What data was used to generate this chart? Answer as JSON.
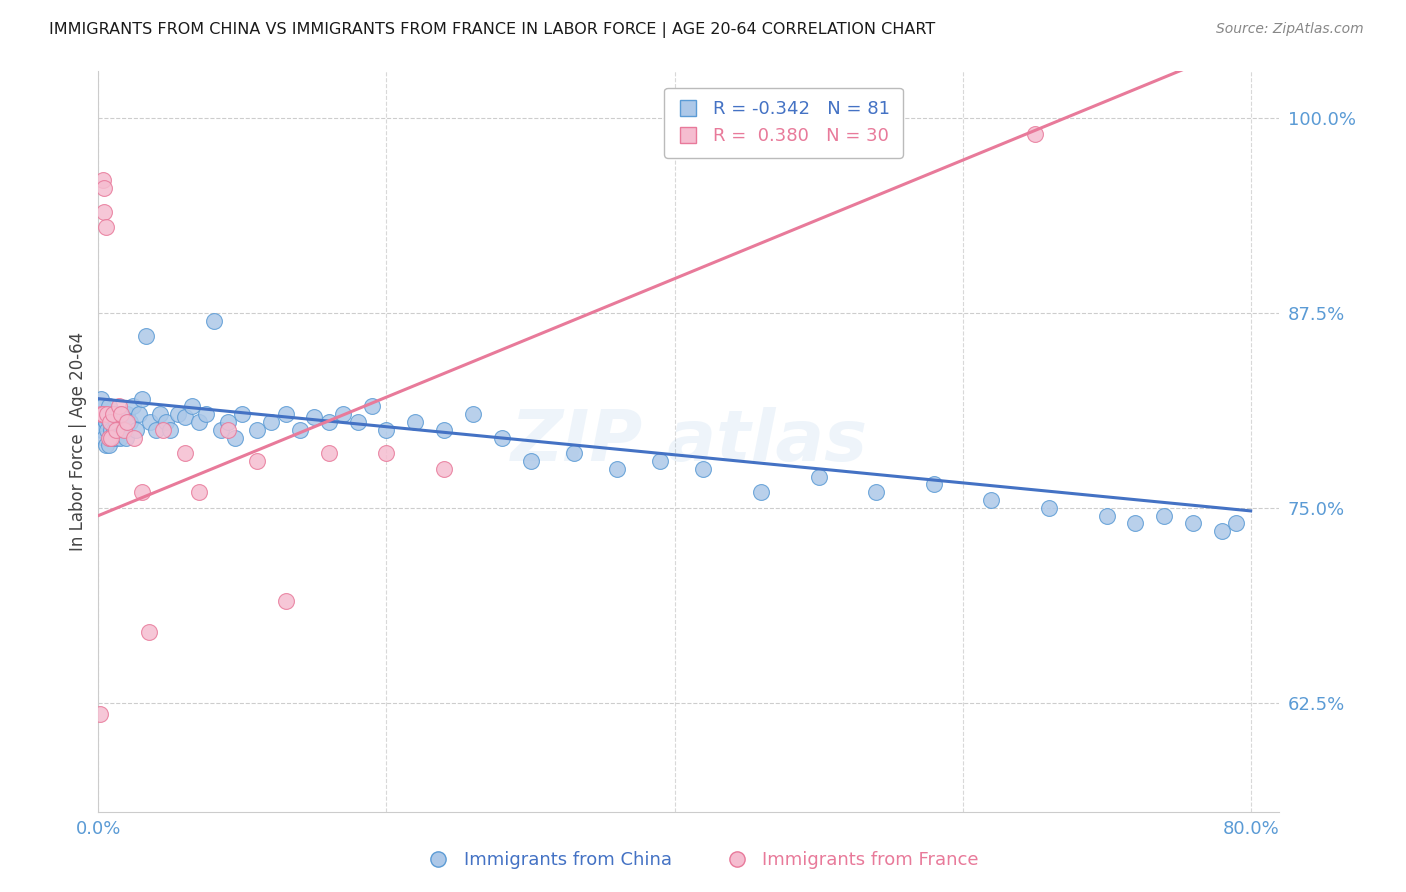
{
  "title": "IMMIGRANTS FROM CHINA VS IMMIGRANTS FROM FRANCE IN LABOR FORCE | AGE 20-64 CORRELATION CHART",
  "source": "Source: ZipAtlas.com",
  "ylabel": "In Labor Force | Age 20-64",
  "xlim": [
    0.0,
    0.82
  ],
  "ylim": [
    0.555,
    1.03
  ],
  "yticks": [
    0.625,
    0.75,
    0.875,
    1.0
  ],
  "ytick_labels": [
    "62.5%",
    "75.0%",
    "87.5%",
    "100.0%"
  ],
  "xtick_labels": [
    "0.0%",
    "80.0%"
  ],
  "xtick_positions": [
    0.0,
    0.8
  ],
  "china_R": -0.342,
  "china_N": 81,
  "france_R": 0.38,
  "france_N": 30,
  "china_dot_color": "#adc8e8",
  "france_dot_color": "#f5bdd0",
  "china_edge_color": "#5b9bd5",
  "france_edge_color": "#e8799a",
  "china_line_color": "#4472c4",
  "france_line_color": "#e87a9a",
  "grid_color": "#c8c8c8",
  "watermark_color": "#5b9bd5",
  "title_color": "#1a1a1a",
  "source_color": "#888888",
  "tick_color": "#5b9bd5",
  "ylabel_color": "#444444",
  "legend_edge_color": "#bbbbbb",
  "china_line_intercept": 0.82,
  "china_line_slope": -0.09,
  "france_line_intercept": 0.745,
  "france_line_slope": 0.38,
  "china_x": [
    0.001,
    0.002,
    0.002,
    0.003,
    0.003,
    0.004,
    0.004,
    0.005,
    0.005,
    0.006,
    0.006,
    0.007,
    0.007,
    0.008,
    0.008,
    0.009,
    0.01,
    0.01,
    0.011,
    0.012,
    0.012,
    0.013,
    0.014,
    0.015,
    0.016,
    0.017,
    0.018,
    0.019,
    0.02,
    0.022,
    0.024,
    0.026,
    0.028,
    0.03,
    0.033,
    0.036,
    0.04,
    0.043,
    0.047,
    0.05,
    0.055,
    0.06,
    0.065,
    0.07,
    0.075,
    0.08,
    0.085,
    0.09,
    0.095,
    0.1,
    0.11,
    0.12,
    0.13,
    0.14,
    0.15,
    0.16,
    0.17,
    0.18,
    0.19,
    0.2,
    0.22,
    0.24,
    0.26,
    0.28,
    0.3,
    0.33,
    0.36,
    0.39,
    0.42,
    0.46,
    0.5,
    0.54,
    0.58,
    0.62,
    0.66,
    0.7,
    0.72,
    0.74,
    0.76,
    0.78,
    0.79
  ],
  "china_y": [
    0.81,
    0.82,
    0.8,
    0.815,
    0.8,
    0.81,
    0.795,
    0.805,
    0.79,
    0.808,
    0.8,
    0.815,
    0.79,
    0.805,
    0.795,
    0.8,
    0.81,
    0.795,
    0.8,
    0.805,
    0.795,
    0.81,
    0.8,
    0.795,
    0.81,
    0.8,
    0.808,
    0.795,
    0.81,
    0.805,
    0.815,
    0.8,
    0.81,
    0.82,
    0.86,
    0.805,
    0.8,
    0.81,
    0.805,
    0.8,
    0.81,
    0.808,
    0.815,
    0.805,
    0.81,
    0.87,
    0.8,
    0.805,
    0.795,
    0.81,
    0.8,
    0.805,
    0.81,
    0.8,
    0.808,
    0.805,
    0.81,
    0.805,
    0.815,
    0.8,
    0.805,
    0.8,
    0.81,
    0.795,
    0.78,
    0.785,
    0.775,
    0.78,
    0.775,
    0.76,
    0.77,
    0.76,
    0.765,
    0.755,
    0.75,
    0.745,
    0.74,
    0.745,
    0.74,
    0.735,
    0.74
  ],
  "france_x": [
    0.001,
    0.002,
    0.003,
    0.003,
    0.004,
    0.004,
    0.005,
    0.006,
    0.007,
    0.008,
    0.009,
    0.01,
    0.012,
    0.014,
    0.016,
    0.018,
    0.02,
    0.025,
    0.03,
    0.035,
    0.045,
    0.06,
    0.07,
    0.09,
    0.11,
    0.13,
    0.16,
    0.2,
    0.24,
    0.65
  ],
  "france_y": [
    0.618,
    0.81,
    0.81,
    0.96,
    0.955,
    0.94,
    0.93,
    0.81,
    0.795,
    0.805,
    0.795,
    0.81,
    0.8,
    0.815,
    0.81,
    0.8,
    0.805,
    0.795,
    0.76,
    0.67,
    0.8,
    0.785,
    0.76,
    0.8,
    0.78,
    0.69,
    0.785,
    0.785,
    0.775,
    0.99
  ]
}
